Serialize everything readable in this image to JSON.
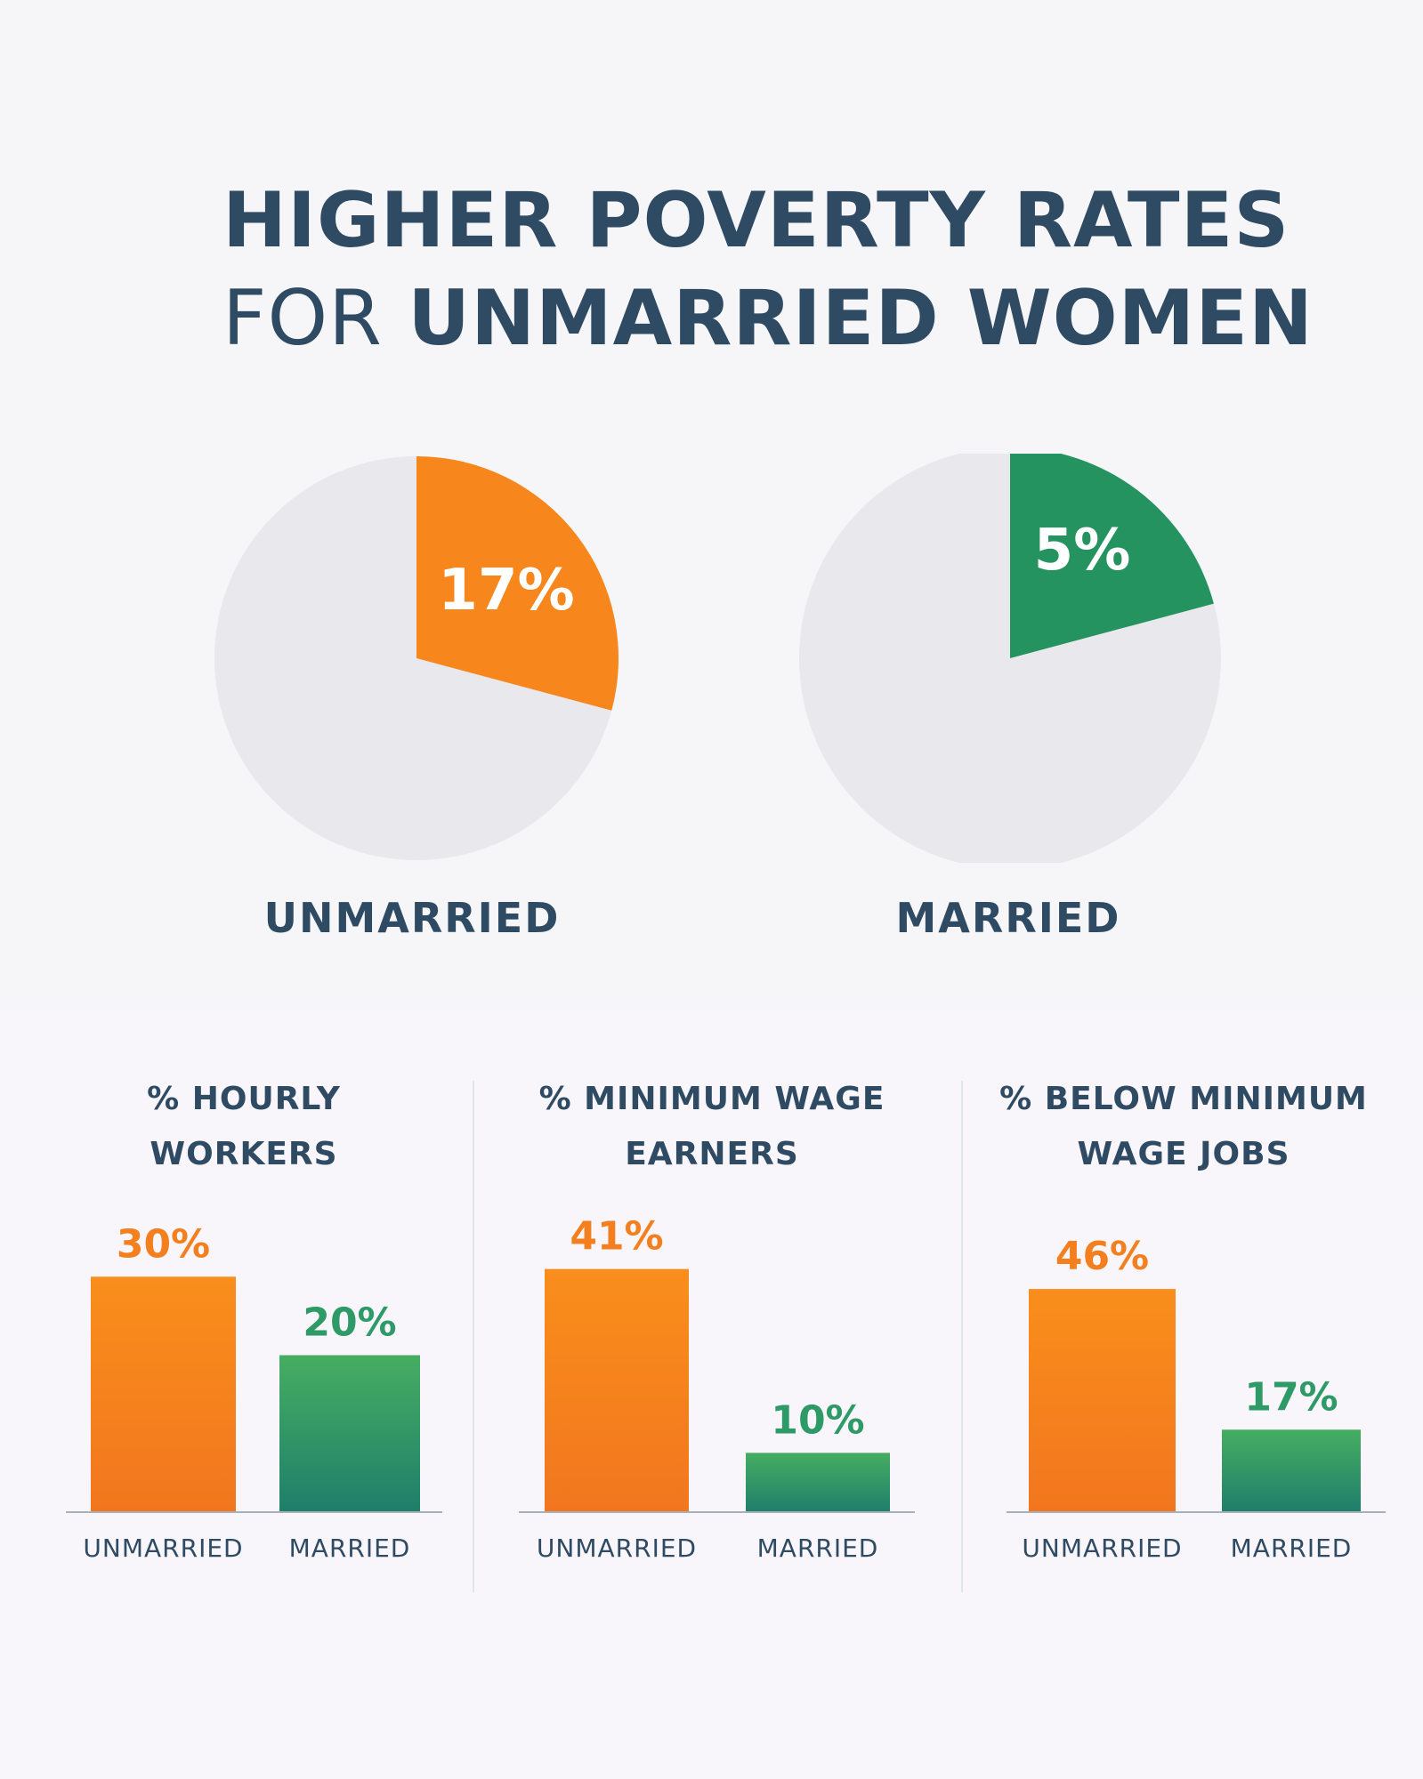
{
  "title": {
    "line1": "HIGHER POVERTY RATES",
    "line2_prefix": "FOR ",
    "line2_bold": "UNMARRIED WOMEN"
  },
  "colors": {
    "orange": "#f7861c",
    "green_top": "#46ad62",
    "green_bottom": "#1f7e6b",
    "pie_bg": "#e8e8ed",
    "text": "#2f4a63",
    "axis": "#a8b0b8"
  },
  "chart_data": [
    {
      "type": "pie",
      "title": "UNMARRIED",
      "value": 17,
      "value_label": "17%"
    },
    {
      "type": "pie",
      "title": "MARRIED",
      "value": 5,
      "value_label": "5%"
    },
    {
      "type": "bar",
      "title": "% HOURLY WORKERS",
      "title_lines": [
        "% HOURLY",
        "WORKERS"
      ],
      "categories": [
        "UNMARRIED",
        "MARRIED"
      ],
      "values": [
        30,
        20
      ],
      "labels": [
        "30%",
        "20%"
      ],
      "ylim": [
        0,
        34
      ]
    },
    {
      "type": "bar",
      "title": "% MINIMUM WAGE EARNERS",
      "title_lines": [
        "% MINIMUM WAGE",
        "EARNERS"
      ],
      "categories": [
        "UNMARRIED",
        "MARRIED"
      ],
      "values": [
        41,
        10
      ],
      "labels": [
        "41%",
        "10%"
      ],
      "ylim": [
        0,
        45
      ]
    },
    {
      "type": "bar",
      "title": "% BELOW MINIMUM WAGE JOBS",
      "title_lines": [
        "% BELOW MINIMUM",
        "WAGE JOBS"
      ],
      "categories": [
        "UNMARRIED",
        "MARRIED"
      ],
      "values": [
        46,
        17
      ],
      "labels": [
        "46%",
        "17%"
      ],
      "ylim": [
        0,
        55
      ]
    }
  ]
}
